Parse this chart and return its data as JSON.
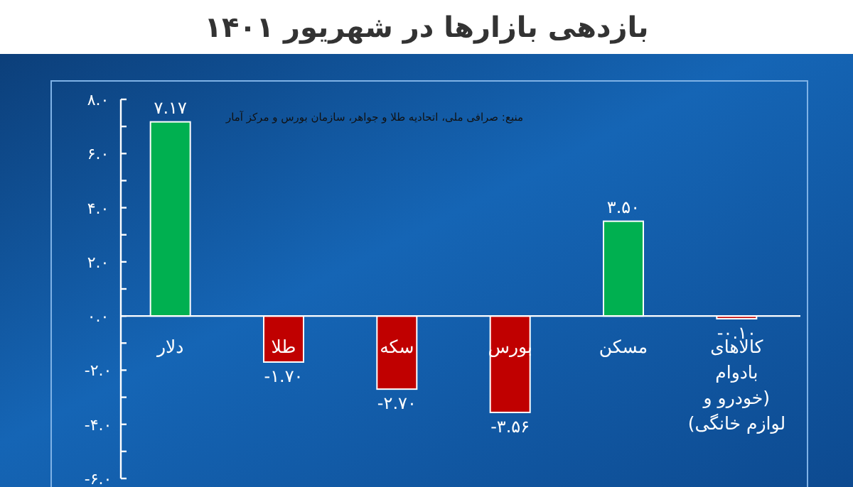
{
  "chart_data": {
    "type": "bar",
    "title": "بازدهی بازارها در شهریور ۱۴۰۱",
    "categories": [
      "دلار",
      "طلا",
      "سکه",
      "بورس",
      "مسکن",
      "کالاهای بادوام (خودرو و لوازم خانگی)"
    ],
    "values": [
      7.17,
      -1.7,
      -2.7,
      -3.56,
      3.5,
      -0.1
    ],
    "colors": [
      "#00b050",
      "#c00000",
      "#c00000",
      "#c00000",
      "#00b050",
      "#c00000"
    ],
    "value_labels": [
      "۷.۱۷",
      "-۱.۷۰",
      "-۲.۷۰",
      "-۳.۵۶",
      "۳.۵۰",
      "-۰.۱۰"
    ],
    "ylim": [
      -6,
      8
    ],
    "yticks": [
      {
        "value": -6,
        "label": "-۶.۰"
      },
      {
        "value": -5,
        "label": null
      },
      {
        "value": -4,
        "label": "-۴.۰"
      },
      {
        "value": -3,
        "label": null
      },
      {
        "value": -2,
        "label": "-۲.۰"
      },
      {
        "value": -1,
        "label": null
      },
      {
        "value": 0,
        "label": "۰.۰"
      },
      {
        "value": 1,
        "label": null
      },
      {
        "value": 2,
        "label": "۲.۰"
      },
      {
        "value": 3,
        "label": null
      },
      {
        "value": 4,
        "label": "۴.۰"
      },
      {
        "value": 5,
        "label": null
      },
      {
        "value": 6,
        "label": "۶.۰"
      },
      {
        "value": 7,
        "label": null
      },
      {
        "value": 8,
        "label": "۸.۰"
      }
    ],
    "annotations": [
      "منبع: صرافی ملی، اتحادیه طلا و جواهر، سازمان بورس و مرکز آمار"
    ],
    "grid": false
  }
}
